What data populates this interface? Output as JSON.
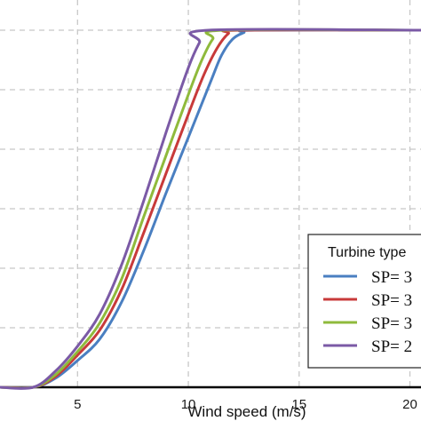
{
  "chart_data": {
    "type": "line",
    "xlabel": "Wind speed (m/s)",
    "ylabel": "",
    "xlim": [
      1.5,
      20.5
    ],
    "ylim": [
      0,
      1
    ],
    "x_ticks": [
      5,
      10,
      15,
      20
    ],
    "x_tick_labels": [
      "5",
      "10",
      "15",
      "20"
    ],
    "y_gridlines": [
      0.1667,
      0.3333,
      0.5,
      0.6667,
      0.8333,
      1.0
    ],
    "grid": true,
    "legend": {
      "title": "Turbine type",
      "placement": "bottom-right",
      "labels": [
        "SP= 3",
        "SP= 3",
        "SP= 3",
        "SP= 2"
      ]
    },
    "series": [
      {
        "name": "SP= 3",
        "color": "#4a7fc1",
        "x": [
          1.5,
          3.0,
          4.0,
          5.0,
          6.0,
          7.0,
          8.0,
          9.0,
          10.0,
          11.0,
          11.5,
          12.0,
          12.5,
          13.0,
          20.5
        ],
        "y": [
          0,
          0,
          0.025,
          0.075,
          0.135,
          0.24,
          0.385,
          0.545,
          0.7,
          0.855,
          0.93,
          0.975,
          0.993,
          1.0,
          1.0
        ]
      },
      {
        "name": "SP= 3",
        "color": "#c83a3a",
        "x": [
          1.5,
          3.0,
          4.0,
          5.0,
          6.0,
          7.0,
          8.0,
          9.0,
          10.0,
          10.7,
          11.3,
          11.8,
          12.3,
          20.5
        ],
        "y": [
          0,
          0,
          0.03,
          0.09,
          0.16,
          0.275,
          0.435,
          0.6,
          0.765,
          0.875,
          0.95,
          0.99,
          1.0,
          1.0
        ]
      },
      {
        "name": "SP= 3",
        "color": "#8fba3c",
        "x": [
          1.5,
          3.0,
          4.0,
          5.0,
          6.0,
          7.0,
          8.0,
          9.0,
          10.0,
          10.6,
          11.1,
          11.6,
          20.5
        ],
        "y": [
          0,
          0,
          0.035,
          0.1,
          0.18,
          0.305,
          0.48,
          0.65,
          0.82,
          0.915,
          0.975,
          1.0,
          1.0
        ]
      },
      {
        "name": "SP= 2",
        "color": "#7b5aa6",
        "x": [
          1.5,
          3.0,
          4.0,
          5.0,
          6.0,
          7.0,
          8.0,
          9.0,
          10.0,
          10.5,
          10.9,
          20.5
        ],
        "y": [
          0,
          0,
          0.045,
          0.115,
          0.205,
          0.345,
          0.525,
          0.715,
          0.895,
          0.965,
          1.0,
          1.0
        ]
      }
    ]
  }
}
